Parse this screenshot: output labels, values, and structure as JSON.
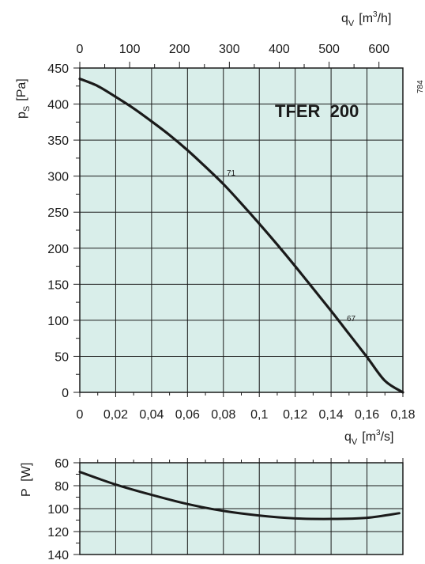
{
  "chart_data": [
    {
      "type": "line",
      "title": "TFER  200",
      "code": "784",
      "ylabel": {
        "base": "p",
        "sub": "S",
        "unit": "[Pa]"
      },
      "xlabel_bottom": {
        "base": "q",
        "sub": "V",
        "unit_pre": "[m",
        "unit_sup": "3",
        "unit_post": "/s]"
      },
      "xlabel_top": {
        "base": "q",
        "sub": "V",
        "unit_pre": "[m",
        "unit_sup": "3",
        "unit_post": "/h]"
      },
      "xlim": [
        0,
        0.18
      ],
      "ylim": [
        0,
        450
      ],
      "x_ticks": [
        "0",
        "0,02",
        "0,04",
        "0,06",
        "0,08",
        "0,1",
        "0,12",
        "0,14",
        "0,16",
        "0,18"
      ],
      "x_tick_values": [
        0,
        0.02,
        0.04,
        0.06,
        0.08,
        0.1,
        0.12,
        0.14,
        0.16,
        0.18
      ],
      "y_ticks": [
        "0",
        "50",
        "100",
        "150",
        "200",
        "250",
        "300",
        "350",
        "400",
        "450"
      ],
      "y_tick_values": [
        0,
        50,
        100,
        150,
        200,
        250,
        300,
        350,
        400,
        450
      ],
      "top_ticks": [
        "0",
        "100",
        "200",
        "300",
        "400",
        "500",
        "600"
      ],
      "top_tick_values": [
        0,
        100,
        200,
        300,
        400,
        500,
        600
      ],
      "grid": true,
      "background": "#d9eeea",
      "series": [
        {
          "x": [
            0,
            0.01,
            0.02,
            0.03,
            0.04,
            0.05,
            0.06,
            0.07,
            0.08,
            0.09,
            0.1,
            0.11,
            0.12,
            0.13,
            0.14,
            0.15,
            0.16,
            0.17,
            0.18
          ],
          "values": [
            435,
            425,
            410,
            394,
            376,
            357,
            336,
            313,
            289,
            262,
            234,
            205,
            175,
            144,
            113,
            81,
            49,
            16,
            0
          ],
          "color": "#1a1a1a"
        }
      ],
      "annotations": [
        {
          "text": "71",
          "x": 0.082,
          "y": 300
        },
        {
          "text": "67",
          "x": 0.148,
          "y": 103
        }
      ]
    },
    {
      "type": "line",
      "ylabel": "P  [W]",
      "xlim": [
        0,
        0.18
      ],
      "ylim": [
        140,
        60
      ],
      "y_ticks": [
        "60",
        "80",
        "100",
        "120",
        "140"
      ],
      "y_tick_values": [
        60,
        80,
        100,
        120,
        140
      ],
      "grid": true,
      "background": "#d9eeea",
      "series": [
        {
          "x": [
            0,
            0.02,
            0.04,
            0.06,
            0.08,
            0.1,
            0.12,
            0.14,
            0.16,
            0.178
          ],
          "values": [
            68,
            79,
            88,
            96,
            102,
            106,
            108.5,
            109,
            108,
            104
          ],
          "color": "#1a1a1a"
        }
      ]
    }
  ]
}
